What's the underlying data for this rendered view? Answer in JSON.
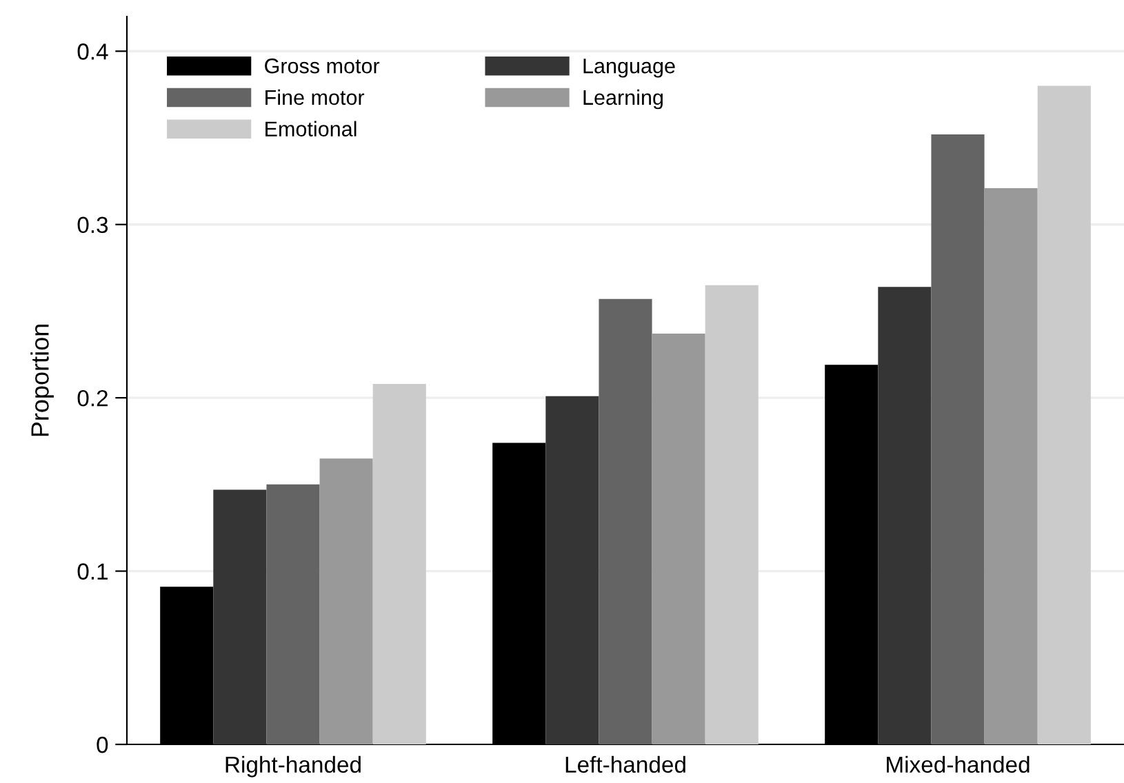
{
  "chart_data": {
    "type": "bar",
    "ylabel": "Proportion",
    "categories": [
      "Right-handed",
      "Left-handed",
      "Mixed-handed"
    ],
    "series": [
      {
        "name": "Gross motor",
        "color": "#000000",
        "values": [
          0.091,
          0.174,
          0.219
        ]
      },
      {
        "name": "Language",
        "color": "#353535",
        "values": [
          0.147,
          0.201,
          0.264
        ]
      },
      {
        "name": "Fine motor",
        "color": "#646464",
        "values": [
          0.15,
          0.257,
          0.352
        ]
      },
      {
        "name": "Learning",
        "color": "#999999",
        "values": [
          0.165,
          0.237,
          0.321
        ]
      },
      {
        "name": "Emotional",
        "color": "#cbcbcb",
        "values": [
          0.208,
          0.265,
          0.38
        ]
      }
    ],
    "ylim": [
      0,
      0.42
    ],
    "yticks": [
      0,
      0.1,
      0.2,
      0.3,
      0.4
    ],
    "grid": "y",
    "legend": "top left"
  }
}
